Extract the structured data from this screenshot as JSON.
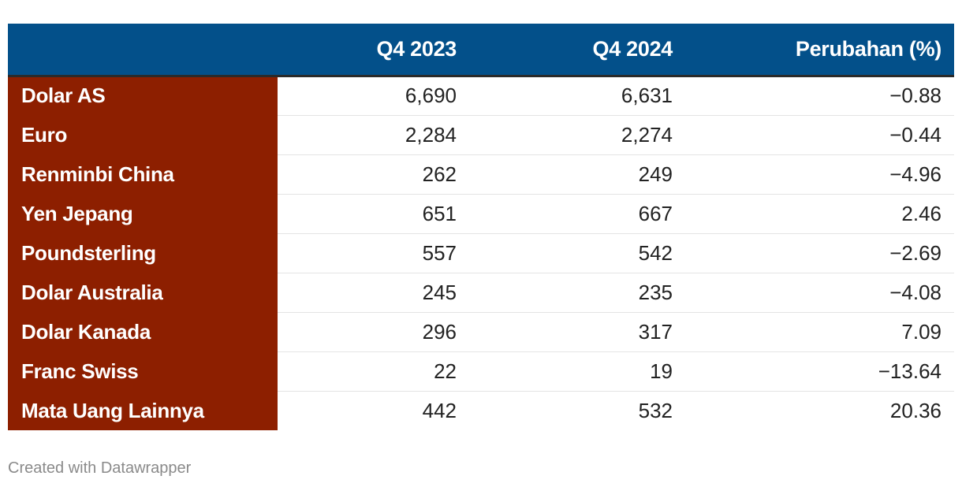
{
  "chart_data": {
    "type": "table",
    "columns": [
      "",
      "Q4 2023",
      "Q4 2024",
      "Perubahan (%)"
    ],
    "rows": [
      {
        "label": "Dolar AS",
        "q4_2023": "6,690",
        "q4_2024": "6,631",
        "change": "−0.88"
      },
      {
        "label": "Euro",
        "q4_2023": "2,284",
        "q4_2024": "2,274",
        "change": "−0.44"
      },
      {
        "label": "Renminbi China",
        "q4_2023": "262",
        "q4_2024": "249",
        "change": "−4.96"
      },
      {
        "label": "Yen Jepang",
        "q4_2023": "651",
        "q4_2024": "667",
        "change": "2.46"
      },
      {
        "label": "Poundsterling",
        "q4_2023": "557",
        "q4_2024": "542",
        "change": "−2.69"
      },
      {
        "label": "Dolar Australia",
        "q4_2023": "245",
        "q4_2024": "235",
        "change": "−4.08"
      },
      {
        "label": "Dolar Kanada",
        "q4_2023": "296",
        "q4_2024": "317",
        "change": "7.09"
      },
      {
        "label": "Franc Swiss",
        "q4_2023": "22",
        "q4_2024": "19",
        "change": "−13.64"
      },
      {
        "label": "Mata Uang Lainnya",
        "q4_2023": "442",
        "q4_2024": "532",
        "change": "20.36"
      }
    ]
  },
  "colors": {
    "header_bg": "#03508a",
    "label_bg": "#8d1f00"
  },
  "footer": {
    "credit": "Created with Datawrapper"
  }
}
